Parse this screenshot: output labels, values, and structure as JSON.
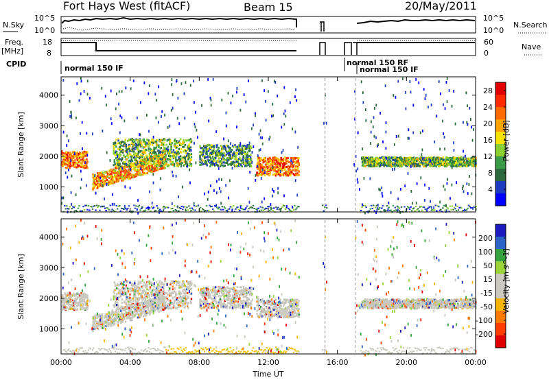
{
  "header": {
    "radar": "Fort Hays West (fitACF)",
    "beam": "Beam 15",
    "date": "20/May/2011"
  },
  "summary": {
    "left_labels": [
      "N.Sky",
      "Freq.",
      "[MHz]",
      "CPID"
    ],
    "right_labels": [
      "N.Search",
      "Nave"
    ],
    "noise_ticks": [
      "10^5",
      "10^0"
    ],
    "freq_ticks": [
      "18",
      "8"
    ],
    "nave_ticks": [
      "60",
      "0"
    ],
    "cpid_labels": [
      "normal 150 IF",
      "normal 150 RF",
      "normal 150 IF"
    ]
  },
  "colors": {
    "power": [
      "#0000ff",
      "#1e3cbe",
      "#2c6a3d",
      "#3a9b46",
      "#8ccf30",
      "#f7e200",
      "#ffa300",
      "#ff6a00",
      "#ff2a00",
      "#e10000"
    ],
    "velocity": [
      "#1a1abf",
      "#2b63c7",
      "#35a33b",
      "#9ad33a",
      "#c8c8be",
      "#c8c8be",
      "#f5b400",
      "#ff7a00",
      "#ff3c00",
      "#e00000"
    ],
    "ground": "#c8c8be"
  },
  "chart_data": [
    {
      "type": "heatmap",
      "name": "Power",
      "x": [
        "00:00",
        "04:00",
        "08:00",
        "12:00",
        "16:00",
        "20:00",
        "00:00"
      ],
      "xlim_hours": [
        0,
        24
      ],
      "ylim": [
        180,
        4600
      ],
      "yticks": [
        "1000",
        "2000",
        "3000",
        "4000"
      ],
      "ylabel": "Slant Range [km]",
      "colorbar": {
        "label": "Power [dB]",
        "ticks": [
          "4",
          "8",
          "12",
          "16",
          "20",
          "24",
          "28"
        ],
        "range": [
          0,
          30
        ]
      },
      "data_gaps_hours": [
        [
          13.75,
          15.1
        ],
        [
          15.35,
          16.9
        ]
      ],
      "bands": [
        {
          "t": [
            0,
            1.5
          ],
          "range_km": [
            1650,
            2200
          ],
          "value": 22
        },
        {
          "t": [
            1.8,
            6
          ],
          "range_km": [
            950,
            1800
          ],
          "value": 20
        },
        {
          "t": [
            3,
            7.5
          ],
          "range_km": [
            1700,
            2600
          ],
          "value": 12
        },
        {
          "t": [
            8,
            11
          ],
          "range_km": [
            1700,
            2400
          ],
          "value": 10
        },
        {
          "t": [
            11.3,
            13.75
          ],
          "range_km": [
            1400,
            2000
          ],
          "value": 22
        },
        {
          "t": [
            17.4,
            24
          ],
          "range_km": [
            1700,
            2000
          ],
          "value": 12
        }
      ]
    },
    {
      "type": "heatmap",
      "name": "Velocity",
      "x": [
        "00:00",
        "04:00",
        "08:00",
        "12:00",
        "16:00",
        "20:00",
        "00:00"
      ],
      "xlabel": "Time UT",
      "xlim_hours": [
        0,
        24
      ],
      "ylim": [
        180,
        4600
      ],
      "yticks": [
        "1000",
        "2000",
        "3000",
        "4000"
      ],
      "ylabel": "Slant Range [km]",
      "colorbar": {
        "label": "Velocity [m s^-1]",
        "ticks": [
          "200",
          "100",
          "50",
          "15",
          "-15",
          "-50",
          "-100",
          "-200"
        ],
        "range": [
          -250,
          250
        ]
      },
      "ground_scatter": "grey",
      "data_gaps_hours": [
        [
          13.75,
          15.1
        ],
        [
          15.35,
          16.9
        ]
      ]
    }
  ]
}
